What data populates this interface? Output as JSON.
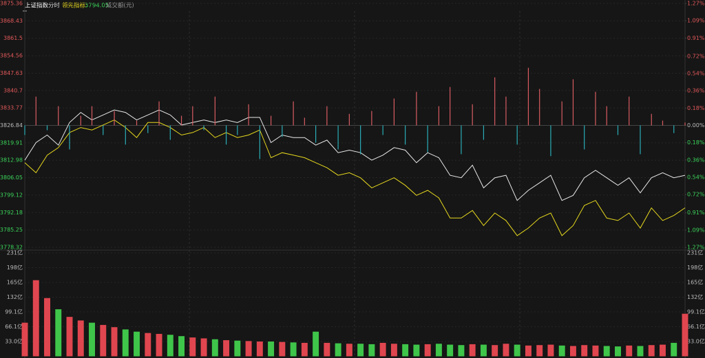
{
  "chart_data": [
    {
      "type": "line",
      "title": "上证指数",
      "period": "分时",
      "ylim": [
        3778.32,
        3875.36
      ],
      "yticks": [
        3875.36,
        3868.43,
        3861.5,
        3854.56,
        3847.63,
        3840.7,
        3833.77,
        3826.84,
        3819.91,
        3812.98,
        3806.05,
        3799.12,
        3792.18,
        3785.25,
        3778.32
      ],
      "y2lim": [
        -1.27,
        1.27
      ],
      "y2ticks": [
        {
          "value": 1.27,
          "label": "1.27%"
        },
        {
          "value": 1.09,
          "label": "1.09%"
        },
        {
          "value": 0.91,
          "label": "0.91%"
        },
        {
          "value": 0.72,
          "label": "0.72%"
        },
        {
          "value": 0.54,
          "label": "0.54%"
        },
        {
          "value": 0.36,
          "label": "0.36%"
        },
        {
          "value": 0.18,
          "label": "0.18%"
        },
        {
          "value": 0,
          "label": "0.00%"
        },
        {
          "value": -0.18,
          "label": "0.18%"
        },
        {
          "value": -0.36,
          "label": "0.36%"
        },
        {
          "value": -0.54,
          "label": "0.54%"
        },
        {
          "value": -0.72,
          "label": "0.72%"
        },
        {
          "value": -0.91,
          "label": "0.91%"
        },
        {
          "value": -1.09,
          "label": "1.09%"
        },
        {
          "value": -1.27,
          "label": "1.27%"
        }
      ],
      "up_color": "#e0585a",
      "down_color": "#3bd45a",
      "flat_color": "#bbbbbb",
      "series": [
        {
          "color": "#e8e8e8",
          "values": [
            3813,
            3820,
            3823,
            3819,
            3828,
            3832,
            3829,
            3831,
            3833,
            3832,
            3829,
            3831,
            3833,
            3831,
            3827,
            3828,
            3829,
            3828,
            3829,
            3828,
            3830,
            3830,
            3820,
            3823,
            3822,
            3822,
            3819,
            3821,
            3816,
            3817,
            3816,
            3813,
            3815,
            3818,
            3817,
            3812,
            3816,
            3814,
            3807,
            3806,
            3811,
            3802,
            3806,
            3807,
            3797,
            3801,
            3804,
            3807,
            3797,
            3799,
            3806,
            3809,
            3806,
            3803,
            3806,
            3800,
            3806,
            3808,
            3806,
            3807
          ]
        },
        {
          "name": "领先指标:",
          "color": "#e6d81e",
          "values": [
            3812,
            3808,
            3815,
            3818,
            3824,
            3826,
            3825,
            3827,
            3829,
            3826,
            3822,
            3828,
            3828,
            3826,
            3823,
            3824,
            3826,
            3822,
            3824,
            3822,
            3823,
            3825,
            3814,
            3816,
            3815,
            3814,
            3812,
            3810,
            3807,
            3808,
            3806,
            3802,
            3804,
            3806,
            3803,
            3799,
            3801,
            3798,
            3790,
            3790,
            3793,
            3787,
            3792,
            3789,
            3783,
            3786,
            3790,
            3792,
            3783,
            3787,
            3795,
            3797,
            3790,
            3789,
            3792,
            3786,
            3794,
            3789,
            3791,
            3794.05
          ]
        },
        {
          "type": "bar",
          "axis": "y2",
          "up_color": "#d95c62",
          "down_color": "#2aaeb8",
          "values": [
            -0.1,
            0.3,
            -0.05,
            0.2,
            -0.25,
            0.1,
            0.2,
            -0.1,
            0.15,
            -0.2,
            0.05,
            -0.08,
            0.25,
            -0.15,
            0.1,
            0.2,
            -0.05,
            0.3,
            -0.2,
            -0.1,
            0.22,
            -0.35,
            0.1,
            -0.12,
            0.25,
            0.08,
            -0.18,
            0.2,
            -0.25,
            0.12,
            -0.3,
            0.15,
            -0.1,
            0.28,
            -0.2,
            0.35,
            -0.28,
            0.2,
            0.4,
            -0.3,
            0.22,
            -0.15,
            0.5,
            0.3,
            -0.2,
            0.6,
            0.38,
            -0.32,
            0.25,
            0.48,
            -0.25,
            0.35,
            0.2,
            -0.1,
            0.3,
            -0.3,
            0.12,
            0.05,
            -0.08,
            0.03
          ]
        }
      ]
    },
    {
      "type": "bar",
      "title": "成交额(元)",
      "ylim": [
        0,
        231
      ],
      "yticks": [
        {
          "value": 231,
          "label": "231亿"
        },
        {
          "value": 198,
          "label": "198亿"
        },
        {
          "value": 165,
          "label": "165亿"
        },
        {
          "value": 132,
          "label": "132亿"
        },
        {
          "value": 99.1,
          "label": "99.1亿"
        },
        {
          "value": 66.1,
          "label": "66.1亿"
        },
        {
          "value": 33,
          "label": "33.0亿"
        }
      ],
      "up_color": "#e0464f",
      "down_color": "#3fc54a",
      "values": [
        75,
        170,
        130,
        105,
        88,
        80,
        75,
        70,
        65,
        60,
        55,
        52,
        50,
        48,
        45,
        42,
        40,
        38,
        36,
        35,
        34,
        33,
        33,
        32,
        31,
        30,
        55,
        30,
        29,
        28,
        28,
        27,
        30,
        28,
        27,
        26,
        27,
        28,
        26,
        25,
        27,
        26,
        25,
        28,
        26,
        24,
        25,
        26,
        24,
        23,
        25,
        24,
        23,
        22,
        24,
        23,
        25,
        26,
        30,
        95
      ]
    }
  ]
}
